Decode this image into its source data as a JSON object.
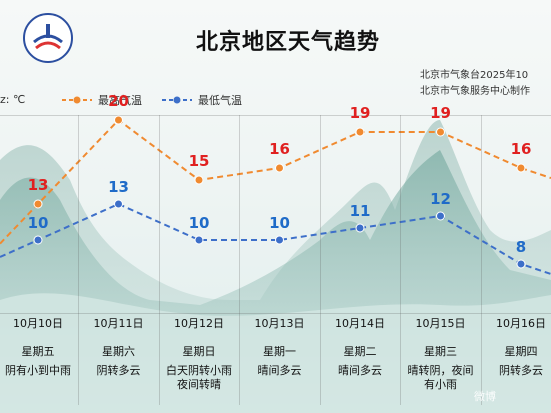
{
  "header": {
    "title": "北京地区天气趋势",
    "source_line1": "北京市气象台2025年10",
    "source_line2": "北京市气象服务中心制作",
    "unit_label": "z: ℃"
  },
  "colors": {
    "high": "#f08a30",
    "low": "#3d6fc9",
    "high_label": "#e02020",
    "low_label": "#1f6bc8"
  },
  "chart_data": {
    "type": "line",
    "categories": [
      "10月10日",
      "10月11日",
      "10月12日",
      "10月13日",
      "10月14日",
      "10月15日",
      "10月16日"
    ],
    "weekdays": [
      "星期五",
      "星期六",
      "星期日",
      "星期一",
      "星期二",
      "星期三",
      "星期四"
    ],
    "weather": [
      [
        "阴有小到中雨"
      ],
      [
        "阴转多云"
      ],
      [
        "白天阴转小雨",
        "夜间转晴"
      ],
      [
        "晴间多云"
      ],
      [
        "晴间多云"
      ],
      [
        "晴转阴，夜间",
        "有小雨"
      ],
      [
        "阴转多云"
      ]
    ],
    "series": [
      {
        "name": "最高气温",
        "values": [
          13,
          20,
          15,
          16,
          19,
          19,
          16
        ]
      },
      {
        "name": "最低气温",
        "values": [
          10,
          13,
          10,
          10,
          11,
          12,
          8
        ]
      }
    ]
  },
  "watermark": "微博"
}
